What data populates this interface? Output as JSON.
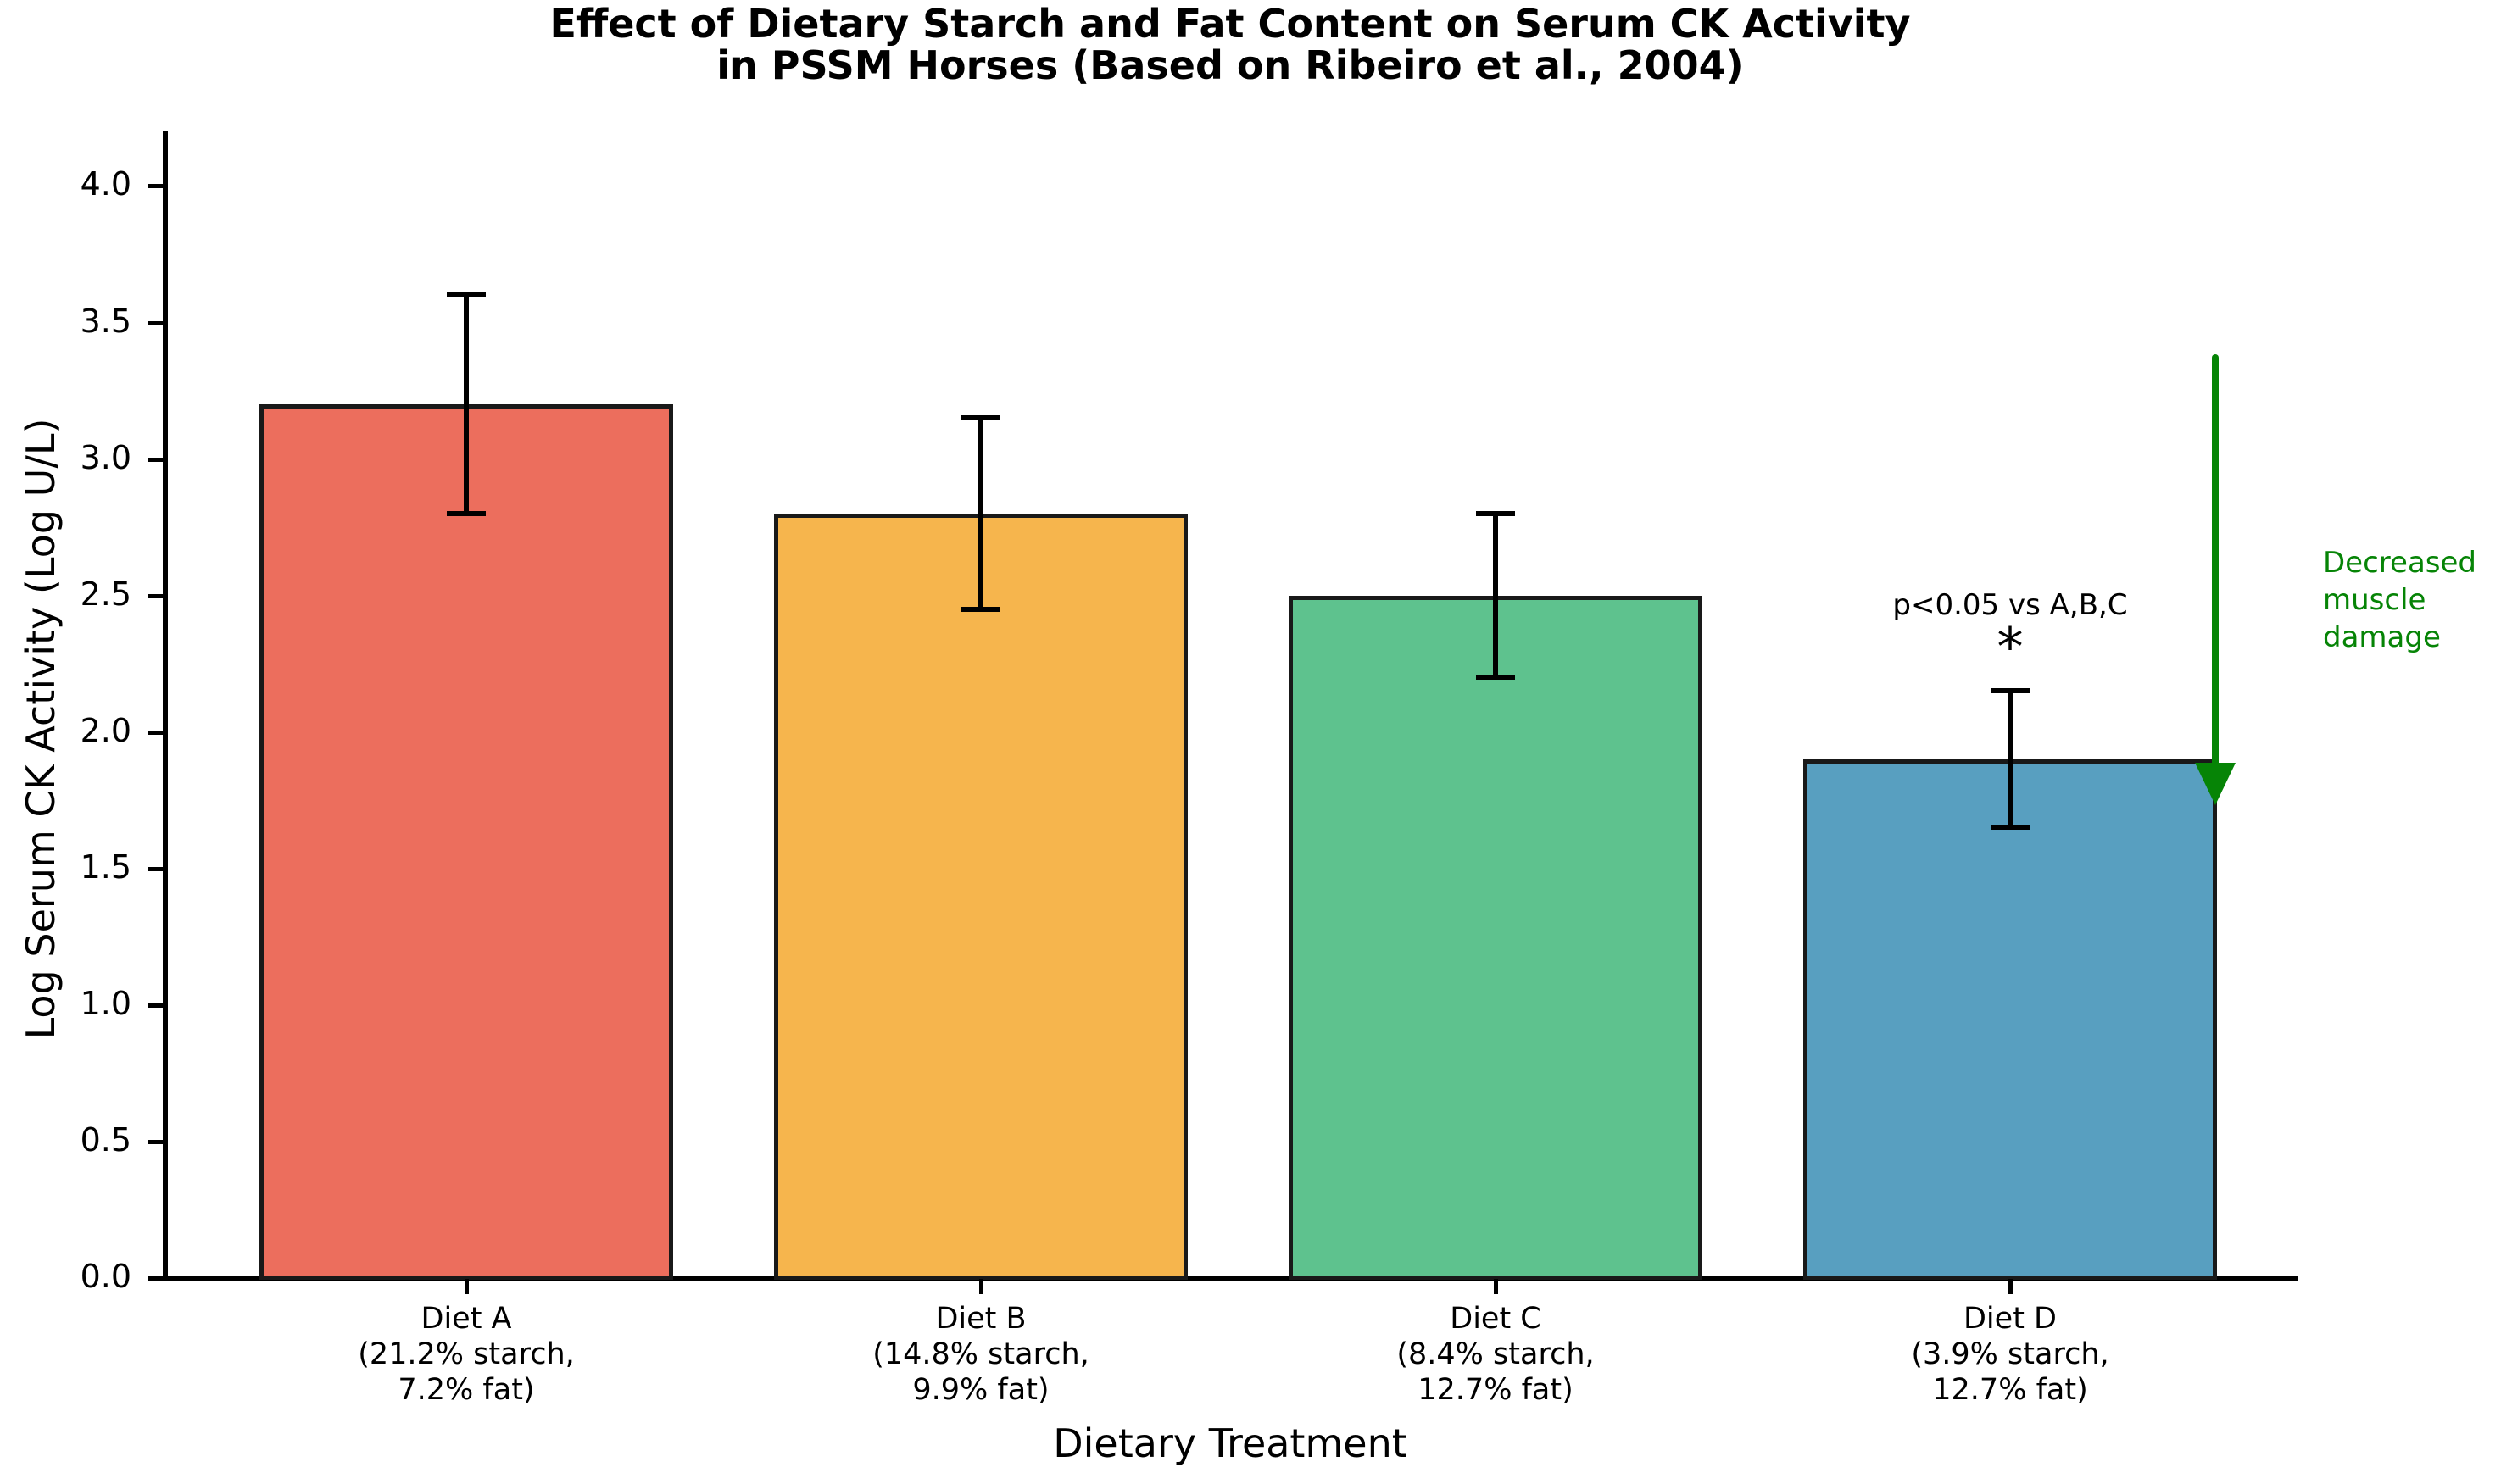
{
  "chart_data": {
    "type": "bar",
    "title": "Effect of Dietary Starch and Fat Content on Serum CK Activity\nin PSSM Horses (Based on Ribeiro et al., 2004)",
    "xlabel": "Dietary Treatment",
    "ylabel": "Log Serum CK Activity (Log U/L)",
    "ylim": [
      0,
      4.2
    ],
    "yticks": [
      0.0,
      0.5,
      1.0,
      1.5,
      2.0,
      2.5,
      3.0,
      3.5,
      4.0
    ],
    "categories": [
      "Diet A\n(21.2% starch,\n7.2% fat)",
      "Diet B\n(14.8% starch,\n9.9% fat)",
      "Diet C\n(8.4% starch,\n12.7% fat)",
      "Diet D\n(3.9% starch,\n12.7% fat)"
    ],
    "values": [
      3.2,
      2.8,
      2.5,
      1.9
    ],
    "errors": [
      0.4,
      0.35,
      0.3,
      0.25
    ],
    "bar_colors": [
      "#ec6e5d",
      "#f6b54d",
      "#5ec28e",
      "#589fc0"
    ],
    "bar_edge_color": "#191919",
    "error_bar_color": "#000000",
    "grid": false,
    "legend": null,
    "significance": {
      "label": "p<0.05 vs A,B,C",
      "symbol": "*",
      "target": "Diet D"
    },
    "arrow": {
      "label": "Decreased\nmuscle\ndamage",
      "color": "#068406",
      "direction": "down"
    }
  }
}
